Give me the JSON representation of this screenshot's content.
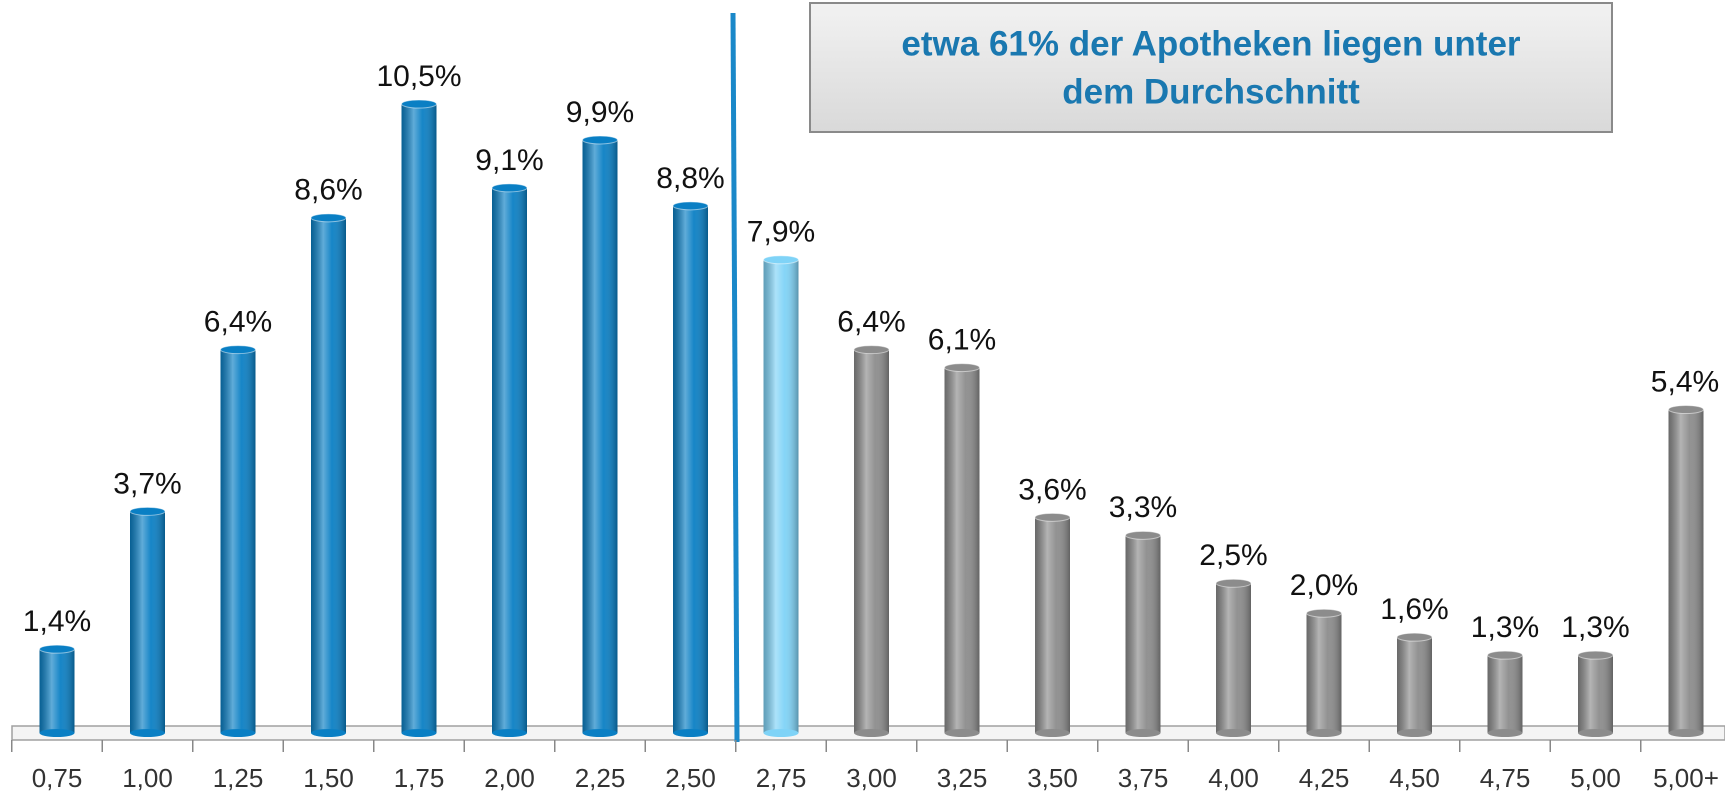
{
  "chart_data": {
    "type": "bar",
    "annotation": [
      "etwa 61% der Apotheken liegen unter",
      "dem Durchschnitt"
    ],
    "categories": [
      "0,75",
      "1,00",
      "1,25",
      "1,50",
      "1,75",
      "2,00",
      "2,25",
      "2,50",
      "2,75",
      "3,00",
      "3,25",
      "3,50",
      "3,75",
      "4,00",
      "4,25",
      "4,50",
      "4,75",
      "5,00",
      "5,00+"
    ],
    "values": [
      1.4,
      3.7,
      6.4,
      8.6,
      10.5,
      9.1,
      9.9,
      8.8,
      7.9,
      6.4,
      6.1,
      3.6,
      3.3,
      2.5,
      2.0,
      1.6,
      1.3,
      1.3,
      5.4
    ],
    "value_labels": [
      "1,4%",
      "3,7%",
      "6,4%",
      "8,6%",
      "10,5%",
      "9,1%",
      "9,9%",
      "8,8%",
      "7,9%",
      "6,4%",
      "6,1%",
      "3,6%",
      "3,3%",
      "2,5%",
      "2,0%",
      "1,6%",
      "1,3%",
      "1,3%",
      "5,4%"
    ],
    "colors": [
      "#0a7fc4",
      "#0a7fc4",
      "#0a7fc4",
      "#0a7fc4",
      "#0a7fc4",
      "#0a7fc4",
      "#0a7fc4",
      "#0a7fc4",
      "#7fd3f7",
      "#8c8c8c",
      "#8c8c8c",
      "#8c8c8c",
      "#8c8c8c",
      "#8c8c8c",
      "#8c8c8c",
      "#8c8c8c",
      "#8c8c8c",
      "#8c8c8c",
      "#8c8c8c"
    ]
  }
}
